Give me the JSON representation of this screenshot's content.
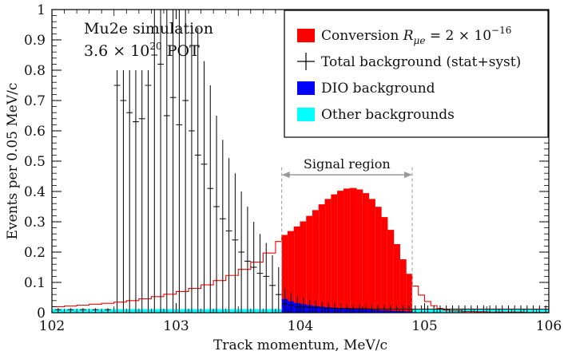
{
  "chart_data": {
    "type": "bar",
    "xlabel": "Track momentum,  MeV/c",
    "ylabel": "Events per 0.05 MeV/c",
    "xlim": [
      102,
      106
    ],
    "ylim": [
      0,
      1
    ],
    "x_ticks": [
      "102",
      "103",
      "104",
      "105",
      "106"
    ],
    "y_ticks": [
      "0",
      "0.1",
      "0.2",
      "0.3",
      "0.4",
      "0.5",
      "0.6",
      "0.7",
      "0.8",
      "0.9",
      "1"
    ],
    "bin_width": 0.05,
    "annotations": {
      "sim_line1": "Mu2e simulation",
      "sim_line2_prefix": "3.6 × 10",
      "sim_line2_exp": "20",
      "sim_line2_suffix": " POT",
      "signal_region_label": "Signal region",
      "signal_region": [
        103.85,
        104.9
      ]
    },
    "legend": {
      "position": "top-right",
      "items": [
        {
          "label": "Conversion ",
          "math": "R",
          "math_sub": "μe",
          "math_rest": " = 2 × 10",
          "math_exp": "−16",
          "color": "#ff0000",
          "kind": "fill"
        },
        {
          "label": "Total background (stat+syst)",
          "color": "#000000",
          "kind": "cross"
        },
        {
          "label": "DIO background",
          "color": "#0000ff",
          "kind": "fill"
        },
        {
          "label": "Other backgrounds",
          "color": "#00ffff",
          "kind": "fill"
        }
      ]
    },
    "series": [
      {
        "name": "Conversion",
        "color": "#ff0000",
        "x": [
          102.0,
          102.1,
          102.2,
          102.3,
          102.4,
          102.5,
          102.6,
          102.7,
          102.8,
          102.9,
          103.0,
          103.1,
          103.2,
          103.3,
          103.4,
          103.5,
          103.6,
          103.7,
          103.8,
          103.85,
          103.9,
          103.95,
          104.0,
          104.05,
          104.1,
          104.15,
          104.2,
          104.25,
          104.3,
          104.35,
          104.4,
          104.45,
          104.5,
          104.55,
          104.6,
          104.65,
          104.7,
          104.75,
          104.8,
          104.85,
          104.9,
          104.95,
          105.0,
          105.05,
          105.1,
          105.15,
          105.2,
          105.3,
          105.4,
          105.5,
          105.6,
          105.8,
          106.0
        ],
        "y": [
          0.02,
          0.022,
          0.025,
          0.028,
          0.031,
          0.035,
          0.04,
          0.046,
          0.053,
          0.061,
          0.07,
          0.08,
          0.092,
          0.106,
          0.123,
          0.143,
          0.167,
          0.197,
          0.235,
          0.255,
          0.268,
          0.283,
          0.3,
          0.318,
          0.337,
          0.356,
          0.374,
          0.389,
          0.401,
          0.408,
          0.41,
          0.405,
          0.393,
          0.374,
          0.348,
          0.314,
          0.272,
          0.225,
          0.175,
          0.127,
          0.088,
          0.058,
          0.037,
          0.023,
          0.014,
          0.009,
          0.006,
          0.004,
          0.003,
          0.002,
          0.002,
          0.001,
          0.001
        ]
      },
      {
        "name": "Total background",
        "color": "#000000",
        "x": [
          102.05,
          102.15,
          102.25,
          102.35,
          102.45,
          102.525,
          102.575,
          102.625,
          102.675,
          102.725,
          102.775,
          102.825,
          102.875,
          102.925,
          102.975,
          103.025,
          103.075,
          103.125,
          103.175,
          103.225,
          103.275,
          103.325,
          103.375,
          103.425,
          103.475,
          103.525,
          103.575,
          103.625,
          103.675,
          103.725,
          103.775,
          103.825,
          103.875,
          103.925,
          103.975,
          104.025,
          104.075,
          104.125,
          104.175,
          104.225,
          104.275,
          104.325,
          104.375,
          104.425,
          104.475,
          104.525,
          104.575,
          104.625,
          104.675,
          104.725,
          104.775,
          104.825,
          104.875,
          104.925,
          104.975,
          105.025,
          105.075,
          105.125,
          105.175,
          105.225,
          105.275,
          105.325,
          105.375,
          105.425,
          105.475,
          105.525,
          105.575,
          105.625,
          105.675,
          105.725,
          105.775,
          105.825,
          105.875,
          105.925,
          105.975
        ],
        "y": [
          0.01,
          0.01,
          0.01,
          0.01,
          0.01,
          0.75,
          0.7,
          0.66,
          0.63,
          0.64,
          0.75,
          0.85,
          0.82,
          0.65,
          0.71,
          0.62,
          0.7,
          0.6,
          0.52,
          0.49,
          0.41,
          0.35,
          0.31,
          0.27,
          0.24,
          0.2,
          0.17,
          0.15,
          0.13,
          0.12,
          0.09,
          0.06,
          0.03,
          0.025,
          0.02,
          0.02,
          0.018,
          0.017,
          0.016,
          0.015,
          0.015,
          0.014,
          0.014,
          0.013,
          0.013,
          0.013,
          0.012,
          0.012,
          0.012,
          0.012,
          0.012,
          0.012,
          0.012,
          0.012,
          0.012,
          0.012,
          0.012,
          0.012,
          0.012,
          0.012,
          0.012,
          0.012,
          0.012,
          0.012,
          0.012,
          0.012,
          0.012,
          0.012,
          0.012,
          0.012,
          0.012,
          0.012,
          0.012,
          0.012,
          0.012
        ],
        "err_low": [
          0.01,
          0.01,
          0.01,
          0.01,
          0.01,
          0.75,
          0.7,
          0.66,
          0.63,
          0.64,
          0.75,
          0.85,
          0.82,
          0.65,
          0.71,
          0.62,
          0.7,
          0.6,
          0.52,
          0.49,
          0.41,
          0.35,
          0.31,
          0.27,
          0.24,
          0.2,
          0.17,
          0.15,
          0.13,
          0.12,
          0.09,
          0.06,
          0.03,
          0.025,
          0.02,
          0.02,
          0.018,
          0.017,
          0.016,
          0.015,
          0.015,
          0.014,
          0.014,
          0.013,
          0.013,
          0.013,
          0.012,
          0.012,
          0.012,
          0.012,
          0.012,
          0.012,
          0.012,
          0.012,
          0.012,
          0.012,
          0.012,
          0.012,
          0.012,
          0.012,
          0.012,
          0.012,
          0.012,
          0.012,
          0.012,
          0.012,
          0.012,
          0.012,
          0.012,
          0.012,
          0.012,
          0.012,
          0.012,
          0.012,
          0.012
        ],
        "err_high": [
          0.005,
          0.005,
          0.005,
          0.005,
          0.005,
          0.05,
          0.1,
          0.14,
          0.17,
          0.16,
          0.05,
          0.15,
          0.18,
          0.35,
          0.29,
          0.38,
          0.3,
          0.35,
          0.42,
          0.34,
          0.34,
          0.3,
          0.26,
          0.24,
          0.22,
          0.2,
          0.18,
          0.15,
          0.13,
          0.11,
          0.1,
          0.09,
          0.05,
          0.04,
          0.035,
          0.03,
          0.025,
          0.022,
          0.02,
          0.018,
          0.016,
          0.015,
          0.014,
          0.013,
          0.013,
          0.012,
          0.012,
          0.012,
          0.012,
          0.012,
          0.012,
          0.012,
          0.012,
          0.012,
          0.012,
          0.012,
          0.012,
          0.012,
          0.012,
          0.012,
          0.012,
          0.012,
          0.012,
          0.012,
          0.012,
          0.012,
          0.012,
          0.012,
          0.012,
          0.012,
          0.012,
          0.012,
          0.012,
          0.012,
          0.012
        ]
      },
      {
        "name": "DIO background",
        "color": "#0000ff",
        "x": [
          103.85,
          103.9,
          103.95,
          104.0,
          104.05,
          104.1,
          104.15,
          104.2,
          104.25,
          104.3,
          104.35,
          104.4,
          104.45,
          104.5,
          104.55,
          104.6,
          104.65,
          104.7,
          104.75,
          104.8,
          104.85
        ],
        "y": [
          0.045,
          0.038,
          0.032,
          0.028,
          0.025,
          0.022,
          0.02,
          0.018,
          0.016,
          0.015,
          0.014,
          0.013,
          0.012,
          0.011,
          0.01,
          0.009,
          0.008,
          0.007,
          0.006,
          0.005,
          0.004
        ]
      },
      {
        "name": "Other backgrounds",
        "color": "#00ffff",
        "x": [
          102.0,
          106.0
        ],
        "y": [
          0.012,
          0.012
        ]
      }
    ]
  }
}
